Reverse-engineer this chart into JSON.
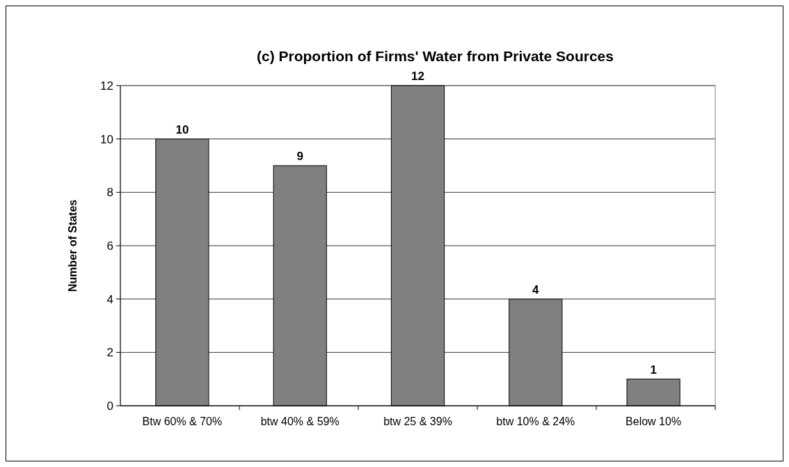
{
  "chart_data": {
    "type": "bar",
    "title": "(c) Proportion of Firms' Water from Private Sources",
    "ylabel": "Number of States",
    "categories": [
      "Btw 60% & 70%",
      "btw 40% & 59%",
      "btw 25 & 39%",
      "btw 10% & 24%",
      "Below 10%"
    ],
    "values": [
      10,
      9,
      12,
      4,
      1
    ],
    "color": "#808080",
    "ylim": [
      0,
      12
    ],
    "yticks": [
      0,
      2,
      4,
      6,
      8,
      10,
      12
    ],
    "grid": "y",
    "data_labels": true
  }
}
